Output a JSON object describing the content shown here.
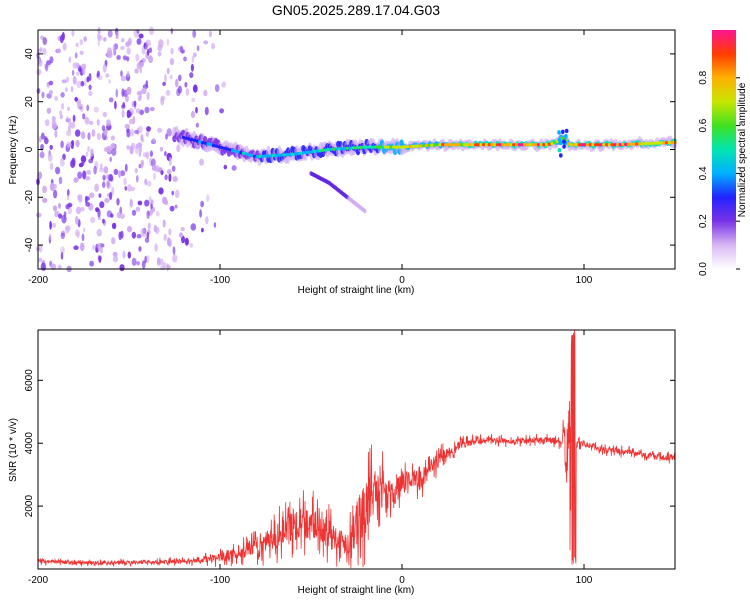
{
  "page_title": "GN05.2025.289.17.04.G03",
  "chart_data": [
    {
      "type": "heatmap",
      "title": "GN05.2025.289.17.04.G03",
      "xlabel": "Height of straight line (km)",
      "ylabel": "Frequency (Hz)",
      "xlim": [
        -200,
        150
      ],
      "ylim": [
        -50,
        50
      ],
      "xticks": [
        -200,
        -100,
        0,
        100
      ],
      "yticks": [
        -40,
        -20,
        0,
        20,
        40
      ],
      "colorbar": {
        "label": "Normalized spectral amplitude",
        "range": [
          0.0,
          1.0
        ],
        "ticks": [
          "0.0",
          "0.2",
          "0.4",
          "0.6",
          "0.8"
        ],
        "tick_values": [
          0.0,
          0.2,
          0.4,
          0.6,
          0.8
        ],
        "colors": [
          "#ffffff",
          "#d8b8f4",
          "#7a33e6",
          "#2222ff",
          "#00b0ff",
          "#00e5b0",
          "#40e020",
          "#c8e600",
          "#ffb000",
          "#ff3c00",
          "#ff1493"
        ]
      },
      "ridge": {
        "description": "Dominant signal frequency versus height",
        "x": [
          -125,
          -100,
          -80,
          -60,
          -40,
          -20,
          0,
          20,
          40,
          60,
          80,
          85,
          88,
          92,
          100,
          120,
          150
        ],
        "y": [
          6,
          1,
          -3,
          -2,
          0,
          1,
          1,
          2,
          2,
          2,
          2,
          3,
          5,
          2,
          2,
          2,
          3
        ],
        "amplitude": [
          0.3,
          0.35,
          0.45,
          0.5,
          0.55,
          0.6,
          0.7,
          0.8,
          0.85,
          0.9,
          0.92,
          0.8,
          0.6,
          0.85,
          0.92,
          0.9,
          0.85
        ]
      },
      "branch": {
        "description": "Secondary decreasing-frequency branch",
        "x": [
          -50,
          -40,
          -30,
          -20
        ],
        "y": [
          -10,
          -14,
          -20,
          -26
        ]
      },
      "noise_region": {
        "x": [
          -200,
          -90
        ],
        "y": [
          -50,
          50
        ]
      }
    },
    {
      "type": "line",
      "xlabel": "Height of straight line (km)",
      "ylabel": "SNR (10 * v/v)",
      "xlim": [
        -200,
        150
      ],
      "ylim": [
        0,
        7600
      ],
      "xticks": [
        -200,
        -100,
        0,
        100
      ],
      "yticks": [
        2000,
        4000,
        6000
      ],
      "color": "#ee3333",
      "series": [
        {
          "name": "SNR",
          "x": [
            -200,
            -180,
            -160,
            -140,
            -120,
            -100,
            -90,
            -80,
            -70,
            -60,
            -50,
            -40,
            -30,
            -25,
            -20,
            -15,
            -10,
            -5,
            0,
            5,
            10,
            20,
            30,
            40,
            50,
            60,
            70,
            80,
            88,
            92,
            94,
            96,
            100,
            110,
            120,
            130,
            140,
            150
          ],
          "y": [
            250,
            200,
            200,
            220,
            250,
            350,
            500,
            700,
            1000,
            1400,
            1500,
            1100,
            800,
            1400,
            2000,
            2600,
            2500,
            2300,
            2700,
            2900,
            2800,
            3500,
            3900,
            4050,
            4100,
            4050,
            4100,
            4100,
            4050,
            3800,
            3900,
            4000,
            4000,
            3800,
            3750,
            3650,
            3550,
            3550
          ],
          "spread": [
            150,
            120,
            120,
            130,
            150,
            300,
            400,
            600,
            900,
            1100,
            1200,
            1000,
            800,
            1600,
            2000,
            1500,
            1200,
            900,
            900,
            700,
            700,
            500,
            300,
            250,
            200,
            200,
            200,
            200,
            300,
            3700,
            3500,
            300,
            200,
            200,
            200,
            200,
            200,
            200
          ]
        }
      ]
    }
  ]
}
